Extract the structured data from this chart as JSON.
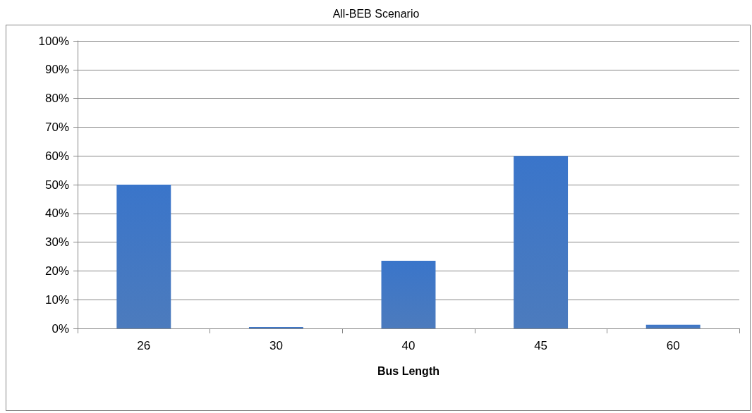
{
  "chart_data": {
    "type": "bar",
    "title": "All-BEB Scenario",
    "xlabel": "Bus Length",
    "categories": [
      "26",
      "30",
      "40",
      "45",
      "60"
    ],
    "values": [
      50,
      0.5,
      23.5,
      60,
      1.3
    ],
    "color": "#3469b5",
    "ylim": [
      0,
      100
    ],
    "yticks": [
      {
        "value": 0,
        "label": "0%"
      },
      {
        "value": 10,
        "label": "10%"
      },
      {
        "value": 20,
        "label": "20%"
      },
      {
        "value": 30,
        "label": "30%"
      },
      {
        "value": 40,
        "label": "40%"
      },
      {
        "value": 50,
        "label": "50%"
      },
      {
        "value": 60,
        "label": "60%"
      },
      {
        "value": 70,
        "label": "70%"
      },
      {
        "value": 80,
        "label": "80%"
      },
      {
        "value": 90,
        "label": "90%"
      },
      {
        "value": 100,
        "label": "100%"
      }
    ],
    "grid": "y"
  }
}
